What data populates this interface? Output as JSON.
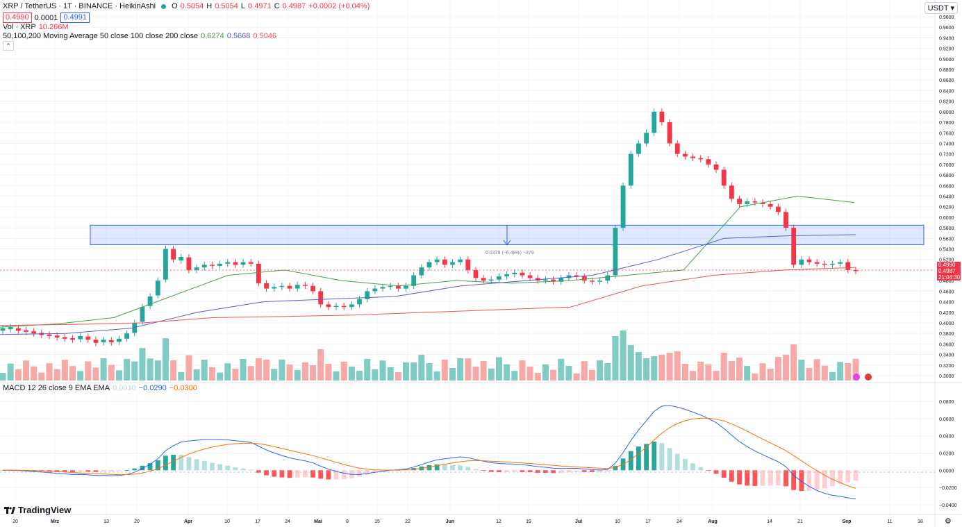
{
  "header": {
    "symbol": "XRP / TetherUS · 1T · BINANCE · HeikinAshi",
    "open_label": "O",
    "open": "0.5054",
    "high_label": "H",
    "high": "0.5054",
    "low_label": "L",
    "low": "0.4971",
    "close_label": "C",
    "close": "0.4987",
    "change": "+0.0002 (+0.04%)",
    "bid": "0.4990",
    "spread": "0.0001",
    "ask": "0.4991"
  },
  "vol": {
    "label": "Vol · XRP",
    "value": "10.266M"
  },
  "ma": {
    "label": "50,100,200 Moving Average 50 close 100 close 200 close",
    "v50": "0.6274",
    "v100": "0.5668",
    "v200": "0.5046"
  },
  "macd": {
    "label": "MACD 12 26 close 9 EMA EMA",
    "hist": "0.0010",
    "macd": "−0.0290",
    "signal": "−0.0300"
  },
  "currency": "USDT",
  "collapse_glyph": "⌃",
  "brand": "TradingView",
  "price_tags": {
    "bid": "0.4990",
    "last": "0.4987",
    "countdown": "21:04:30"
  },
  "measure_label": "0.0379 (−6.48%) −379",
  "colors": {
    "up": "#26a69a",
    "down": "#f23645",
    "ma50": "#43a047",
    "ma100": "#5b5bd6",
    "ma200": "#ef5350",
    "zone": "#2962ff"
  },
  "chart_data": [
    {
      "type": "candlestick",
      "title": "XRP / TetherUS 1T BINANCE HeikinAshi",
      "y_ticks": [
        "0.9800",
        "0.9600",
        "0.9400",
        "0.9200",
        "0.9000",
        "0.8800",
        "0.8600",
        "0.8400",
        "0.8200",
        "0.8000",
        "0.7800",
        "0.7600",
        "0.7400",
        "0.7200",
        "0.7000",
        "0.6800",
        "0.6600",
        "0.6400",
        "0.6200",
        "0.6000",
        "0.5800",
        "0.5600",
        "0.5400",
        "0.5200",
        "0.5000",
        "0.4800",
        "0.4600",
        "0.4400",
        "0.4200",
        "0.4000",
        "0.3800",
        "0.3600",
        "0.3400",
        "0.3200",
        "0.3000"
      ],
      "ylim": [
        0.3,
        0.98
      ],
      "x_ticks": [
        "20",
        "Mrz",
        "13",
        "20",
        "Apr",
        "10",
        "17",
        "24",
        "Mai",
        "8",
        "15",
        "22",
        "Jun",
        "12",
        "19",
        "Jul",
        "10",
        "17",
        "24",
        "Aug",
        "14",
        "21",
        "Sep",
        "11",
        "18"
      ],
      "series": [
        {
          "name": "Price",
          "points": [
            [
              0.385,
              0.39
            ],
            [
              0.388,
              0.392
            ],
            [
              0.39,
              0.385
            ],
            [
              0.386,
              0.383
            ],
            [
              0.384,
              0.38
            ],
            [
              0.381,
              0.377
            ],
            [
              0.378,
              0.375
            ],
            [
              0.376,
              0.372
            ],
            [
              0.373,
              0.37
            ],
            [
              0.371,
              0.368
            ],
            [
              0.369,
              0.375
            ],
            [
              0.374,
              0.368
            ],
            [
              0.368,
              0.362
            ],
            [
              0.363,
              0.368
            ],
            [
              0.367,
              0.363
            ],
            [
              0.364,
              0.37
            ],
            [
              0.37,
              0.38
            ],
            [
              0.381,
              0.4
            ],
            [
              0.402,
              0.43
            ],
            [
              0.432,
              0.45
            ],
            [
              0.452,
              0.48
            ],
            [
              0.482,
              0.54
            ],
            [
              0.54,
              0.52
            ],
            [
              0.518,
              0.525
            ],
            [
              0.524,
              0.5
            ],
            [
              0.5,
              0.505
            ],
            [
              0.505,
              0.51
            ],
            [
              0.51,
              0.508
            ],
            [
              0.508,
              0.512
            ],
            [
              0.512,
              0.515
            ],
            [
              0.515,
              0.51
            ],
            [
              0.51,
              0.515
            ],
            [
              0.515,
              0.512
            ],
            [
              0.512,
              0.475
            ],
            [
              0.475,
              0.465
            ],
            [
              0.465,
              0.468
            ],
            [
              0.468,
              0.47
            ],
            [
              0.47,
              0.465
            ],
            [
              0.465,
              0.472
            ],
            [
              0.472,
              0.47
            ],
            [
              0.47,
              0.46
            ],
            [
              0.46,
              0.435
            ],
            [
              0.435,
              0.43
            ],
            [
              0.43,
              0.432
            ],
            [
              0.432,
              0.43
            ],
            [
              0.43,
              0.435
            ],
            [
              0.435,
              0.445
            ],
            [
              0.445,
              0.46
            ],
            [
              0.46,
              0.465
            ],
            [
              0.465,
              0.468
            ],
            [
              0.468,
              0.47
            ],
            [
              0.47,
              0.465
            ],
            [
              0.465,
              0.47
            ],
            [
              0.47,
              0.49
            ],
            [
              0.49,
              0.505
            ],
            [
              0.505,
              0.515
            ],
            [
              0.515,
              0.52
            ],
            [
              0.52,
              0.51
            ],
            [
              0.51,
              0.515
            ],
            [
              0.515,
              0.52
            ],
            [
              0.52,
              0.5
            ],
            [
              0.5,
              0.485
            ],
            [
              0.485,
              0.48
            ],
            [
              0.48,
              0.482
            ],
            [
              0.482,
              0.488
            ],
            [
              0.488,
              0.492
            ],
            [
              0.492,
              0.495
            ],
            [
              0.495,
              0.49
            ],
            [
              0.49,
              0.485
            ],
            [
              0.485,
              0.48
            ],
            [
              0.48,
              0.482
            ],
            [
              0.482,
              0.478
            ],
            [
              0.478,
              0.485
            ],
            [
              0.485,
              0.49
            ],
            [
              0.49,
              0.488
            ],
            [
              0.488,
              0.48
            ],
            [
              0.48,
              0.478
            ],
            [
              0.478,
              0.48
            ],
            [
              0.48,
              0.49
            ],
            [
              0.49,
              0.58
            ],
            [
              0.58,
              0.66
            ],
            [
              0.66,
              0.72
            ],
            [
              0.72,
              0.74
            ],
            [
              0.74,
              0.76
            ],
            [
              0.76,
              0.8
            ],
            [
              0.8,
              0.78
            ],
            [
              0.78,
              0.74
            ],
            [
              0.74,
              0.72
            ],
            [
              0.72,
              0.715
            ],
            [
              0.715,
              0.712
            ],
            [
              0.712,
              0.71
            ],
            [
              0.71,
              0.7
            ],
            [
              0.7,
              0.69
            ],
            [
              0.69,
              0.66
            ],
            [
              0.66,
              0.635
            ],
            [
              0.635,
              0.625
            ],
            [
              0.625,
              0.63
            ],
            [
              0.63,
              0.628
            ],
            [
              0.628,
              0.625
            ],
            [
              0.625,
              0.62
            ],
            [
              0.62,
              0.61
            ],
            [
              0.61,
              0.58
            ],
            [
              0.58,
              0.51
            ],
            [
              0.51,
              0.52
            ],
            [
              0.52,
              0.515
            ],
            [
              0.515,
              0.512
            ],
            [
              0.512,
              0.51
            ],
            [
              0.51,
              0.512
            ],
            [
              0.512,
              0.515
            ],
            [
              0.515,
              0.5
            ],
            [
              0.5,
              0.498
            ]
          ]
        },
        {
          "name": "50",
          "values": [
            0.392,
            0.398,
            0.41,
            0.45,
            0.49,
            0.5,
            0.48,
            0.47,
            0.48,
            0.475,
            0.48,
            0.49,
            0.5,
            0.62,
            0.64,
            0.628
          ]
        },
        {
          "name": "100",
          "values": [
            0.378,
            0.38,
            0.39,
            0.42,
            0.44,
            0.445,
            0.45,
            0.47,
            0.48,
            0.49,
            0.52,
            0.56,
            0.565,
            0.567
          ]
        },
        {
          "name": "200",
          "values": [
            0.395,
            0.397,
            0.4,
            0.41,
            0.412,
            0.415,
            0.42,
            0.425,
            0.43,
            0.47,
            0.49,
            0.5,
            0.505
          ]
        }
      ],
      "zone": {
        "top": 0.585,
        "bottom": 0.548
      }
    },
    {
      "type": "bar",
      "title": "MACD 12 26 close 9 EMA EMA",
      "y_ticks": [
        "0.0800",
        "0.0600",
        "0.0400",
        "0.0200",
        "0.0000",
        "−0.0200",
        "−0.0400"
      ],
      "ylim": [
        -0.045,
        0.085
      ]
    }
  ]
}
